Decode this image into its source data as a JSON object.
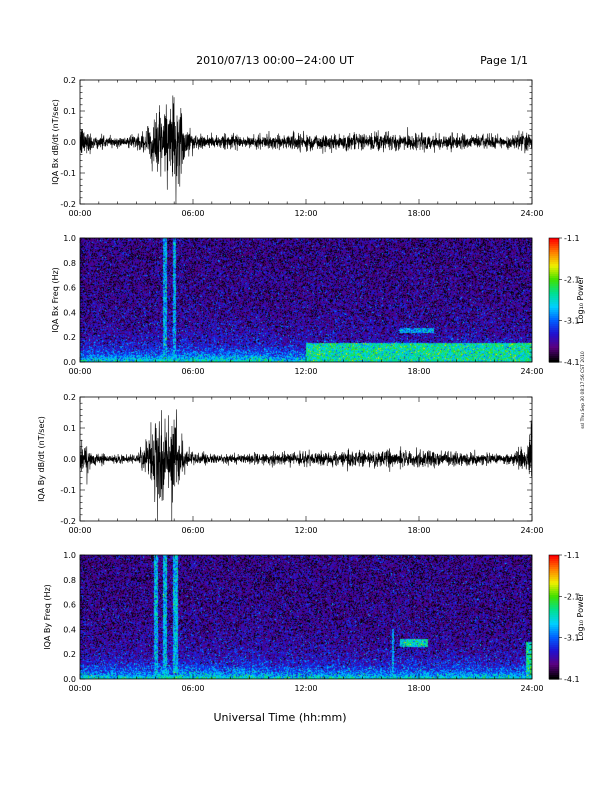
{
  "header": {
    "title": "2010/07/13  00:00−24:00 UT",
    "page": "Page 1/1"
  },
  "footer": {
    "xlabel": "Universal Time (hh:mm)"
  },
  "stamp": "ssl Thu Sep 30 08:17:56 CST 2010",
  "colorbar": {
    "label": "Log₁₀ Power",
    "ticks": [
      "-1.1",
      "-2.1",
      "-3.1",
      "-4.1"
    ]
  },
  "chart_data": [
    {
      "type": "line",
      "panel": "bx-waveform",
      "ylabel": "IQA Bx dB/dt (nT/sec)",
      "xlim": [
        "00:00",
        "24:00"
      ],
      "ylim": [
        -0.2,
        0.2
      ],
      "x_ticks": [
        "00:00",
        "06:00",
        "12:00",
        "18:00",
        "24:00"
      ],
      "y_ticks": [
        "0.2",
        "0.1",
        "0.0",
        "-0.1",
        "-0.2"
      ],
      "x_hours": [
        0,
        0.5,
        1,
        2,
        3,
        3.5,
        4,
        4.3,
        4.6,
        4.8,
        5,
        5.2,
        5.5,
        6,
        7,
        8,
        9,
        10,
        11,
        12,
        13,
        14,
        15,
        16,
        17,
        18,
        19,
        20,
        21,
        22,
        23,
        23.8,
        24
      ],
      "envelope_nT_per_s": [
        0.07,
        0.045,
        0.025,
        0.02,
        0.025,
        0.04,
        0.11,
        0.14,
        0.2,
        0.2,
        0.2,
        0.18,
        0.09,
        0.04,
        0.025,
        0.025,
        0.025,
        0.03,
        0.035,
        0.035,
        0.035,
        0.035,
        0.035,
        0.035,
        0.035,
        0.03,
        0.03,
        0.03,
        0.03,
        0.025,
        0.025,
        0.05,
        0.06
      ],
      "color": "#000000"
    },
    {
      "type": "heatmap",
      "panel": "bx-spectrogram",
      "ylabel": "IQA Bx Freq (Hz)",
      "xlim": [
        "00:00",
        "24:00"
      ],
      "ylim": [
        0.0,
        1.0
      ],
      "x_ticks": [
        "00:00",
        "06:00",
        "12:00",
        "18:00",
        "24:00"
      ],
      "y_ticks": [
        "1.0",
        "0.8",
        "0.6",
        "0.4",
        "0.2",
        "0.0"
      ],
      "color_range": [
        -4.1,
        -1.1
      ],
      "colormap": [
        "#000000",
        "#5a0080",
        "#2010d0",
        "#0060ff",
        "#00d0ff",
        "#00e090",
        "#40e000",
        "#f0f000",
        "#ff8000",
        "#ff0000"
      ],
      "features": [
        {
          "hour_range": [
            4.4,
            4.6
          ],
          "freq_range": [
            0.0,
            1.0
          ],
          "level": -2.9
        },
        {
          "hour_range": [
            4.9,
            5.1
          ],
          "freq_range": [
            0.0,
            1.0
          ],
          "level": -2.9
        },
        {
          "hour_range": [
            12.0,
            24.0
          ],
          "freq_range": [
            0.0,
            0.15
          ],
          "level": -2.5
        },
        {
          "hour_range": [
            17.0,
            18.8
          ],
          "freq_range": [
            0.23,
            0.27
          ],
          "level": -2.9
        }
      ]
    },
    {
      "type": "line",
      "panel": "by-waveform",
      "ylabel": "IQA By dB/dt (nT/sec)",
      "xlim": [
        "00:00",
        "24:00"
      ],
      "ylim": [
        -0.2,
        0.2
      ],
      "x_ticks": [
        "00:00",
        "06:00",
        "12:00",
        "18:00",
        "24:00"
      ],
      "y_ticks": [
        "0.2",
        "0.1",
        "0.0",
        "-0.1",
        "-0.2"
      ],
      "x_hours": [
        0,
        0.5,
        1,
        2,
        3,
        3.5,
        4,
        4.3,
        4.6,
        4.8,
        5,
        5.2,
        5.5,
        6,
        7,
        8,
        9,
        10,
        11,
        12,
        13,
        14,
        15,
        16,
        17,
        18,
        19,
        20,
        21,
        22,
        23,
        23.8,
        24
      ],
      "envelope_nT_per_s": [
        0.09,
        0.04,
        0.02,
        0.015,
        0.015,
        0.08,
        0.14,
        0.2,
        0.2,
        0.2,
        0.2,
        0.13,
        0.07,
        0.03,
        0.02,
        0.02,
        0.02,
        0.025,
        0.025,
        0.025,
        0.03,
        0.03,
        0.035,
        0.035,
        0.035,
        0.035,
        0.03,
        0.03,
        0.025,
        0.02,
        0.02,
        0.06,
        0.2
      ],
      "color": "#000000"
    },
    {
      "type": "heatmap",
      "panel": "by-spectrogram",
      "ylabel": "IQA By Freq (Hz)",
      "xlim": [
        "00:00",
        "24:00"
      ],
      "ylim": [
        0.0,
        1.0
      ],
      "x_ticks": [
        "00:00",
        "06:00",
        "12:00",
        "18:00",
        "24:00"
      ],
      "y_ticks": [
        "1.0",
        "0.8",
        "0.6",
        "0.4",
        "0.2",
        "0.0"
      ],
      "color_range": [
        -4.1,
        -1.1
      ],
      "colormap": [
        "#000000",
        "#5a0080",
        "#2010d0",
        "#0060ff",
        "#00d0ff",
        "#00e090",
        "#40e000",
        "#f0f000",
        "#ff8000",
        "#ff0000"
      ],
      "features": [
        {
          "hour_range": [
            3.9,
            4.1
          ],
          "freq_range": [
            0.0,
            1.0
          ],
          "level": -2.8
        },
        {
          "hour_range": [
            4.4,
            4.6
          ],
          "freq_range": [
            0.0,
            1.0
          ],
          "level": -2.8
        },
        {
          "hour_range": [
            4.9,
            5.2
          ],
          "freq_range": [
            0.0,
            1.0
          ],
          "level": -2.8
        },
        {
          "hour_range": [
            16.6,
            16.7
          ],
          "freq_range": [
            0.0,
            0.4
          ],
          "level": -2.9
        },
        {
          "hour_range": [
            17.0,
            18.5
          ],
          "freq_range": [
            0.26,
            0.32
          ],
          "level": -2.6
        },
        {
          "hour_range": [
            23.7,
            24.0
          ],
          "freq_range": [
            0.0,
            0.3
          ],
          "level": -2.5
        }
      ]
    }
  ]
}
